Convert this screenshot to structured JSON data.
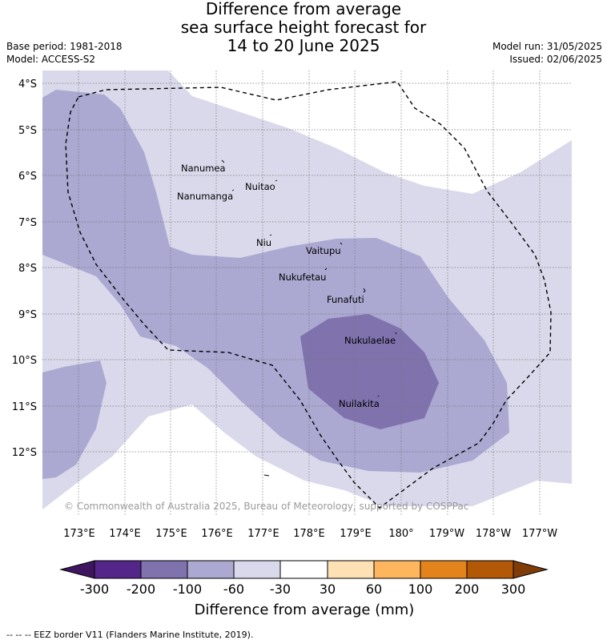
{
  "title": {
    "line1": "Difference from average",
    "line2": "sea surface height forecast for",
    "line3": "14 to 20 June 2025"
  },
  "meta": {
    "base_period": "Base period: 1981-2018",
    "model": "Model: ACCESS-S2",
    "model_run": "Model run: 31/05/2025",
    "issued": "Issued: 02/06/2025"
  },
  "map": {
    "lat_labels": [
      "4°S",
      "5°S",
      "6°S",
      "7°S",
      "8°S",
      "9°S",
      "10°S",
      "11°S",
      "12°S"
    ],
    "lon_labels": [
      "173°E",
      "174°E",
      "175°E",
      "176°E",
      "177°E",
      "178°E",
      "179°E",
      "180°",
      "179°W",
      "178°W",
      "177°W"
    ],
    "places": [
      "Nanumea",
      "Nuitao",
      "Nanumanga",
      "Niu",
      "Vaitupu",
      "Nukufetau",
      "Funafuti",
      "Nukulaelae",
      "Nuilakita"
    ],
    "credit": "© Commonwealth of Australia 2025, Bureau of Meteorology, supported by COSPPac"
  },
  "colorbar": {
    "title": "Difference from average (mm)",
    "ticks": [
      "-300",
      "-200",
      "-100",
      "-60",
      "-30",
      "30",
      "60",
      "100",
      "200",
      "300"
    ],
    "colors": [
      "#3f1560",
      "#54268a",
      "#7f72ad",
      "#aba8d1",
      "#d9d9eb",
      "#ffffff",
      "#fde0b4",
      "#fdb55e",
      "#e3831b",
      "#b35806",
      "#7f3b08"
    ]
  },
  "footnote": "--  --  -- EEZ border V11 (Flanders Marine Institute, 2019)."
}
